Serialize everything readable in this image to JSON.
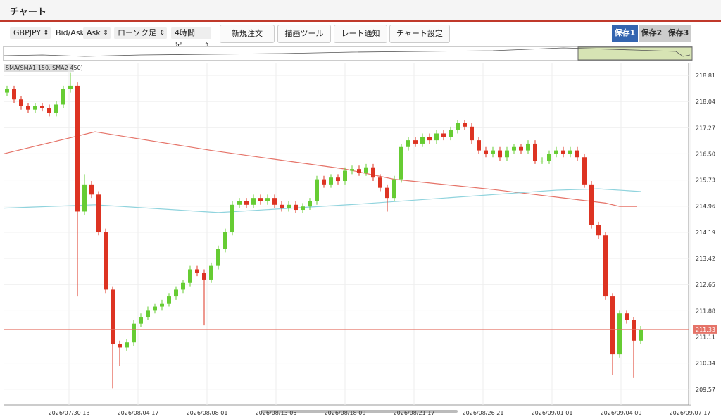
{
  "header": {
    "title": "チャート"
  },
  "toolbar": {
    "symbol": "GBPJPY",
    "price_label": "Bid/Ask",
    "price_side": "Ask",
    "chart_style": "ローソク足",
    "timeframe": "4時間足",
    "buttons": [
      "新規注文",
      "描画ツール",
      "レート通知",
      "チャート設定"
    ],
    "saves": [
      "保存1",
      "保存2",
      "保存3"
    ]
  },
  "chart_data": {
    "type": "candlestick",
    "indicator_label": "SMA(SMA1:150, SMA2:450)",
    "up_color": "#66cc33",
    "down_color": "#dd3322",
    "open": [
      218.3,
      218.4,
      218.1,
      217.9,
      217.8,
      217.9,
      217.85,
      217.7,
      217.95,
      218.4,
      218.5,
      214.8,
      215.6,
      215.3,
      214.2,
      212.5,
      210.9,
      210.8,
      210.95,
      211.5,
      211.7,
      211.9,
      212.0,
      212.1,
      212.3,
      212.5,
      212.7,
      213.1,
      213.0,
      212.8,
      213.2,
      213.7,
      214.2,
      215.0,
      215.1,
      215.0,
      215.2,
      215.1,
      215.2,
      215.0,
      214.9,
      215.0,
      214.85,
      214.95,
      215.1,
      215.75,
      215.6,
      215.8,
      215.7,
      216.0,
      216.05,
      215.95,
      216.1,
      215.8,
      215.5,
      215.2,
      215.75,
      216.7,
      216.9,
      216.8,
      217.0,
      216.9,
      217.1,
      217.0,
      217.2,
      217.4,
      217.3,
      216.9,
      216.6,
      216.5,
      216.6,
      216.4,
      216.6,
      216.7,
      216.6,
      216.8,
      216.3,
      216.3,
      216.5,
      216.6,
      216.5,
      216.6,
      216.4,
      215.6,
      214.4,
      214.1,
      212.3,
      210.6,
      211.8,
      211.6,
      211.0
    ],
    "high": [
      218.5,
      218.5,
      218.2,
      218.0,
      218.0,
      218.0,
      217.95,
      218.05,
      218.5,
      218.9,
      218.6,
      215.9,
      215.7,
      215.4,
      214.3,
      212.6,
      211.0,
      211.05,
      211.6,
      211.8,
      212.0,
      212.1,
      212.2,
      212.4,
      212.6,
      212.8,
      213.2,
      213.2,
      213.1,
      213.3,
      213.8,
      214.3,
      215.1,
      215.2,
      215.2,
      215.3,
      215.3,
      215.3,
      215.3,
      215.1,
      215.1,
      215.1,
      215.05,
      215.2,
      215.85,
      215.85,
      215.9,
      215.9,
      216.1,
      216.15,
      216.15,
      216.2,
      216.2,
      215.9,
      215.6,
      215.85,
      216.8,
      217.0,
      217.0,
      217.1,
      217.1,
      217.2,
      217.2,
      217.3,
      217.5,
      217.5,
      217.4,
      217.0,
      216.7,
      216.7,
      216.7,
      216.7,
      216.8,
      216.8,
      216.9,
      216.9,
      216.4,
      216.6,
      216.7,
      216.7,
      216.7,
      216.7,
      216.5,
      215.7,
      214.5,
      214.2,
      212.4,
      211.9,
      211.9,
      211.7,
      211.43
    ],
    "low": [
      218.2,
      218.0,
      217.8,
      217.7,
      217.7,
      217.75,
      217.6,
      217.6,
      217.85,
      218.3,
      212.3,
      214.7,
      215.2,
      214.1,
      212.4,
      209.6,
      210.25,
      210.7,
      210.85,
      211.4,
      211.6,
      211.8,
      211.9,
      212.0,
      212.2,
      212.4,
      212.6,
      212.9,
      211.45,
      212.7,
      213.1,
      213.6,
      214.1,
      214.9,
      214.9,
      214.9,
      215.0,
      215.0,
      214.9,
      214.8,
      214.8,
      214.75,
      214.75,
      214.85,
      215.0,
      215.5,
      215.5,
      215.6,
      215.6,
      215.9,
      215.85,
      215.85,
      215.7,
      215.4,
      214.8,
      215.1,
      215.65,
      216.6,
      216.7,
      216.7,
      216.8,
      216.8,
      216.9,
      216.9,
      217.1,
      217.2,
      216.8,
      216.5,
      216.4,
      216.4,
      216.3,
      216.3,
      216.5,
      216.5,
      216.5,
      216.2,
      216.2,
      216.2,
      216.4,
      216.4,
      216.4,
      216.3,
      215.5,
      214.3,
      214.0,
      212.2,
      210.0,
      210.5,
      211.5,
      209.9,
      210.9
    ],
    "close": [
      218.4,
      218.1,
      217.9,
      217.8,
      217.9,
      217.85,
      217.7,
      217.95,
      218.4,
      218.5,
      214.8,
      215.6,
      215.3,
      214.2,
      212.5,
      210.9,
      210.8,
      210.95,
      211.5,
      211.7,
      211.9,
      212.0,
      212.1,
      212.3,
      212.5,
      212.7,
      213.1,
      213.0,
      212.8,
      213.2,
      213.7,
      214.2,
      215.0,
      215.1,
      215.0,
      215.2,
      215.1,
      215.2,
      215.0,
      214.9,
      215.0,
      214.85,
      214.95,
      215.1,
      215.75,
      215.6,
      215.8,
      215.7,
      216.0,
      216.05,
      215.95,
      216.1,
      215.8,
      215.5,
      215.2,
      215.75,
      216.7,
      216.9,
      216.8,
      217.0,
      216.9,
      217.1,
      217.0,
      217.2,
      217.4,
      217.3,
      216.9,
      216.6,
      216.5,
      216.6,
      216.4,
      216.6,
      216.7,
      216.6,
      216.8,
      216.3,
      216.3,
      216.5,
      216.6,
      216.5,
      216.6,
      216.4,
      215.6,
      214.4,
      214.1,
      212.3,
      210.6,
      211.8,
      211.6,
      211.0,
      211.33
    ],
    "lines": [
      {
        "color": "#e57368",
        "x": [
          -0.5,
          12.5,
          29,
          48,
          55,
          69,
          79,
          85,
          87,
          89.5
        ],
        "values": [
          216.5,
          217.15,
          216.6,
          216.05,
          215.75,
          215.45,
          215.2,
          215.05,
          214.95,
          214.95
        ]
      },
      {
        "color": "#8fd3dd",
        "x": [
          -0.5,
          12.5,
          30,
          50,
          78,
          84,
          90
        ],
        "values": [
          214.9,
          215.0,
          214.77,
          215.02,
          215.43,
          215.47,
          215.39
        ]
      }
    ],
    "current_price": 211.33,
    "current_color": "#e57368",
    "xlim": [
      -0.5,
      97.2
    ],
    "ylim": [
      209.11,
      219.12
    ],
    "yticks": [
      218.81,
      218.04,
      217.27,
      {
        "value": 216.5,
        "label": "216.50"
      },
      215.73,
      214.96,
      214.19,
      213.42,
      212.65,
      211.88,
      211.11,
      210.34,
      209.57
    ],
    "xticks": [
      {
        "value": 8.8,
        "label": "2026/07/30 13"
      },
      {
        "value": 18.6,
        "label": "2026/08/04 17"
      },
      {
        "value": 28.4,
        "label": "2026/08/08 01"
      },
      {
        "value": 38.2,
        "label": "2026/08/13 05"
      },
      {
        "value": 48.0,
        "label": "2026/08/18 09"
      },
      {
        "value": 57.8,
        "label": "2026/08/21 17"
      },
      {
        "value": 67.6,
        "label": "2026/08/26 21"
      },
      {
        "value": 77.4,
        "label": "2026/09/01 01"
      },
      {
        "value": 87.2,
        "label": "2026/09/04 09"
      },
      {
        "value": 97.0,
        "label": "2026/09/07 17"
      }
    ],
    "grid": true
  }
}
